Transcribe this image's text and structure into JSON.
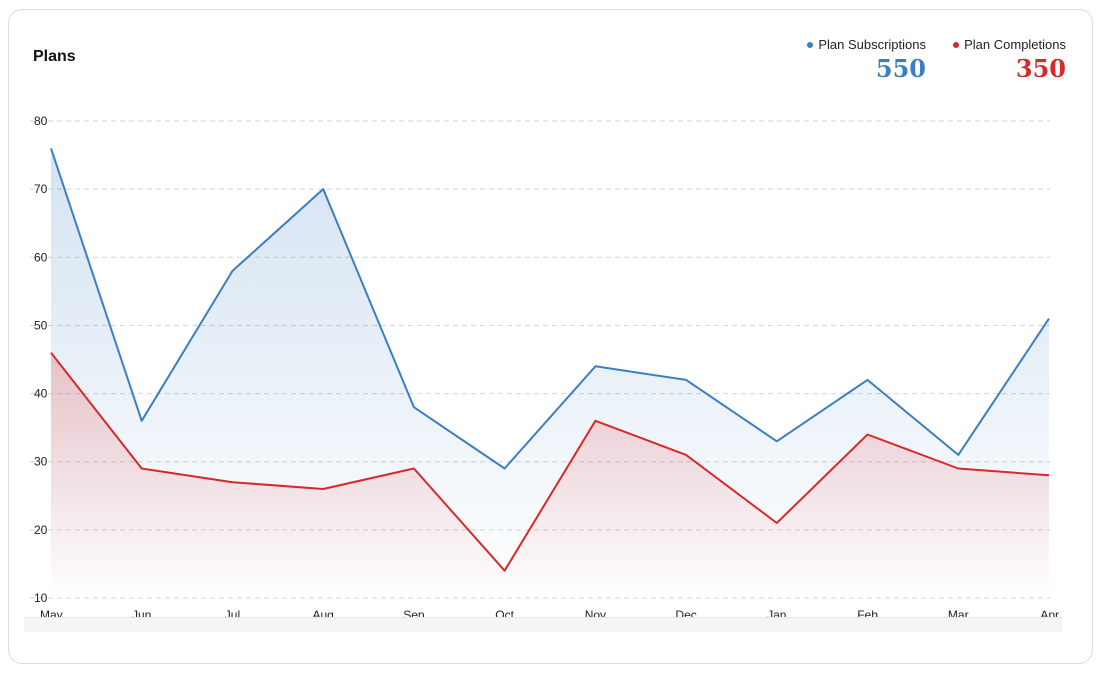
{
  "header": {
    "title": "Plans"
  },
  "legend": [
    {
      "label": "Plan Subscriptions",
      "total": "550",
      "color": "#3a7fc1"
    },
    {
      "label": "Plan Completions",
      "total": "350",
      "color": "#d62a2a"
    }
  ],
  "chart_data": {
    "type": "area",
    "title": "Plans",
    "categories": [
      "May",
      "Jun",
      "Jul",
      "Aug",
      "Sep",
      "Oct",
      "Nov",
      "Dec",
      "Jan",
      "Feb",
      "Mar",
      "Apr"
    ],
    "series": [
      {
        "name": "Plan Subscriptions",
        "color": "#3a7fc1",
        "values": [
          76,
          36,
          58,
          70,
          38,
          29,
          44,
          42,
          33,
          42,
          31,
          51
        ]
      },
      {
        "name": "Plan Completions",
        "color": "#d62a2a",
        "values": [
          46,
          29,
          27,
          26,
          29,
          14,
          36,
          31,
          21,
          34,
          29,
          28
        ]
      }
    ],
    "ylim": [
      10,
      80
    ],
    "yticks": [
      10,
      20,
      30,
      40,
      50,
      60,
      70,
      80
    ],
    "grid": true,
    "legend_position": "top-right"
  }
}
